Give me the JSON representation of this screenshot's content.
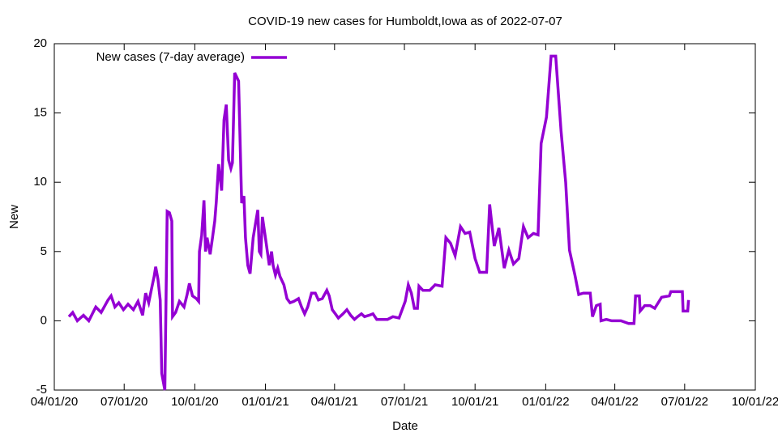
{
  "chart_data": {
    "type": "line",
    "title": "COVID-19 new cases for Humboldt,Iowa as of 2022-07-07",
    "xlabel": "Date",
    "ylabel": "New",
    "legend": "top-left",
    "xlim": [
      "2020-04-01",
      "2022-10-01"
    ],
    "xticks": [
      {
        "value": "2020-04-01",
        "label": "04/01/20"
      },
      {
        "value": "2020-07-01",
        "label": "07/01/20"
      },
      {
        "value": "2020-10-01",
        "label": "10/01/20"
      },
      {
        "value": "2021-01-01",
        "label": "01/01/21"
      },
      {
        "value": "2021-04-01",
        "label": "04/01/21"
      },
      {
        "value": "2021-07-01",
        "label": "07/01/21"
      },
      {
        "value": "2021-10-01",
        "label": "10/01/21"
      },
      {
        "value": "2022-01-01",
        "label": "01/01/22"
      },
      {
        "value": "2022-04-01",
        "label": "04/01/22"
      },
      {
        "value": "2022-07-01",
        "label": "07/01/22"
      },
      {
        "value": "2022-10-01",
        "label": "10/01/22"
      }
    ],
    "ylim": [
      -5,
      20
    ],
    "yticks": [
      -5,
      0,
      5,
      10,
      15,
      20
    ],
    "series": [
      {
        "name": "New cases (7-day average)",
        "color": "#9400d3",
        "x": [
          "2020-04-20",
          "2020-04-25",
          "2020-05-01",
          "2020-05-09",
          "2020-05-16",
          "2020-05-25",
          "2020-06-01",
          "2020-06-10",
          "2020-06-14",
          "2020-06-19",
          "2020-06-24",
          "2020-06-30",
          "2020-07-06",
          "2020-07-13",
          "2020-07-19",
          "2020-07-25",
          "2020-07-29",
          "2020-08-02",
          "2020-08-06",
          "2020-08-09",
          "2020-08-11",
          "2020-08-14",
          "2020-08-17",
          "2020-08-19",
          "2020-08-23",
          "2020-08-26",
          "2020-08-29",
          "2020-09-01",
          "2020-09-02",
          "2020-09-06",
          "2020-09-11",
          "2020-09-17",
          "2020-09-21",
          "2020-09-24",
          "2020-09-28",
          "2020-10-03",
          "2020-10-06",
          "2020-10-07",
          "2020-10-10",
          "2020-10-13",
          "2020-10-15",
          "2020-10-17",
          "2020-10-21",
          "2020-10-24",
          "2020-10-27",
          "2020-10-29",
          "2020-11-01",
          "2020-11-05",
          "2020-11-08",
          "2020-11-11",
          "2020-11-14",
          "2020-11-17",
          "2020-11-19",
          "2020-11-22",
          "2020-11-27",
          "2020-12-01",
          "2020-12-04",
          "2020-12-06",
          "2020-12-09",
          "2020-12-12",
          "2020-12-16",
          "2020-12-19",
          "2020-12-22",
          "2020-12-24",
          "2020-12-26",
          "2020-12-28",
          "2021-01-01",
          "2021-01-06",
          "2021-01-09",
          "2021-01-11",
          "2021-01-14",
          "2021-01-17",
          "2021-01-20",
          "2021-01-25",
          "2021-01-29",
          "2021-02-02",
          "2021-02-07",
          "2021-02-13",
          "2021-02-17",
          "2021-02-21",
          "2021-02-25",
          "2021-03-02",
          "2021-03-07",
          "2021-03-11",
          "2021-03-16",
          "2021-03-22",
          "2021-03-25",
          "2021-03-29",
          "2021-04-02",
          "2021-04-06",
          "2021-04-12",
          "2021-04-17",
          "2021-04-22",
          "2021-04-27",
          "2021-05-01",
          "2021-05-06",
          "2021-05-10",
          "2021-05-16",
          "2021-05-21",
          "2021-05-26",
          "2021-05-31",
          "2021-06-09",
          "2021-06-16",
          "2021-06-24",
          "2021-06-28",
          "2021-07-02",
          "2021-07-06",
          "2021-07-10",
          "2021-07-14",
          "2021-07-18",
          "2021-07-20",
          "2021-07-25",
          "2021-08-03",
          "2021-08-10",
          "2021-08-19",
          "2021-08-24",
          "2021-08-30",
          "2021-09-05",
          "2021-09-12",
          "2021-09-18",
          "2021-09-24",
          "2021-10-01",
          "2021-10-07",
          "2021-10-16",
          "2021-10-20",
          "2021-10-26",
          "2021-11-01",
          "2021-11-08",
          "2021-11-14",
          "2021-11-20",
          "2021-11-27",
          "2021-12-03",
          "2021-12-09",
          "2021-12-16",
          "2021-12-22",
          "2021-12-26",
          "2022-01-02",
          "2022-01-08",
          "2022-01-14",
          "2022-01-21",
          "2022-01-27",
          "2022-02-01",
          "2022-02-08",
          "2022-02-13",
          "2022-02-19",
          "2022-02-28",
          "2022-03-03",
          "2022-03-08",
          "2022-03-13",
          "2022-03-14",
          "2022-03-21",
          "2022-03-28",
          "2022-04-09",
          "2022-04-19",
          "2022-04-26",
          "2022-04-28",
          "2022-05-03",
          "2022-05-04",
          "2022-05-10",
          "2022-05-17",
          "2022-05-23",
          "2022-06-01",
          "2022-06-11",
          "2022-06-13",
          "2022-06-22",
          "2022-06-28",
          "2022-06-29",
          "2022-07-05",
          "2022-07-06"
        ],
        "values": [
          0.3,
          0.6,
          0,
          0.4,
          0,
          1.0,
          0.6,
          1.5,
          1.8,
          1.0,
          1.3,
          0.8,
          1.2,
          0.8,
          1.4,
          0.4,
          2.0,
          1.3,
          2.4,
          3.2,
          3.9,
          3.0,
          1.5,
          -3.8,
          -5,
          7.9,
          7.8,
          7.2,
          0.3,
          0.6,
          1.4,
          1.0,
          1.9,
          2.7,
          1.8,
          1.6,
          1.4,
          5.0,
          6.2,
          8.7,
          5.0,
          6.0,
          4.8,
          6.0,
          7.2,
          8.6,
          11.3,
          9.4,
          14.5,
          15.6,
          11.6,
          11.0,
          11.4,
          17.9,
          17.3,
          8.5,
          9.0,
          6.0,
          4.0,
          3.4,
          6.0,
          7.0,
          8.0,
          5.0,
          4.8,
          7.5,
          6.0,
          4.0,
          5.0,
          4.0,
          3.3,
          3.8,
          3.2,
          2.6,
          1.6,
          1.3,
          1.4,
          1.6,
          1.0,
          0.5,
          1.0,
          2.0,
          2.0,
          1.5,
          1.6,
          2.2,
          1.8,
          0.8,
          0.5,
          0.2,
          0.5,
          0.8,
          0.4,
          0.1,
          0.3,
          0.5,
          0.3,
          0.4,
          0.5,
          0.1,
          0.1,
          0.1,
          0.3,
          0.2,
          0.8,
          1.4,
          2.6,
          2.0,
          0.9,
          0.9,
          2.5,
          2.2,
          2.2,
          2.6,
          2.5,
          6.0,
          5.6,
          4.7,
          6.8,
          6.3,
          6.4,
          4.5,
          3.5,
          3.5,
          8.4,
          5.4,
          6.7,
          3.8,
          5.1,
          4.1,
          4.5,
          6.8,
          6.0,
          6.3,
          6.2,
          12.8,
          14.7,
          19.1,
          19.1,
          13.7,
          10.0,
          5.1,
          3.3,
          1.9,
          2.0,
          2.0,
          0.3,
          1.1,
          1.2,
          0,
          0.1,
          0,
          0,
          -0.2,
          -0.2,
          1.8,
          1.8,
          0.7,
          1.1,
          1.1,
          0.9,
          1.7,
          1.8,
          2.1,
          2.1,
          2.1,
          0.7,
          0.7,
          1.5
        ]
      }
    ]
  }
}
